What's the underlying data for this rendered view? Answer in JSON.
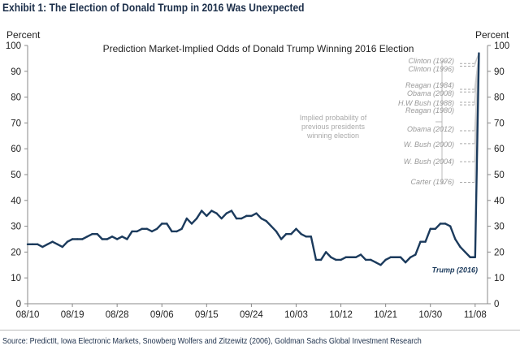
{
  "title": "Exhibit 1: The Election of Donald Trump in 2016 Was Unexpected",
  "source": "Source: PredictIt, Iowa Electronic Markets, Snowberg Wolfers and Zitzewitz (2006), Goldman Sachs Global Investment Research",
  "chart_data": {
    "type": "line",
    "title": "Prediction Market-Implied Odds of Donald Trump Winning 2016 Election",
    "ylabel_left": "Percent",
    "ylabel_right": "Percent",
    "ylim": [
      0,
      100
    ],
    "yticks": [
      0,
      10,
      20,
      30,
      40,
      50,
      60,
      70,
      80,
      90,
      100
    ],
    "xticks": [
      "08/10",
      "08/19",
      "08/28",
      "09/06",
      "09/15",
      "09/24",
      "10/03",
      "10/12",
      "10/21",
      "10/30",
      "11/08"
    ],
    "grid": false,
    "series": [
      {
        "name": "Trump (2016)",
        "color": "#1b3a5c",
        "x": [
          "08/10",
          "08/11",
          "08/12",
          "08/13",
          "08/14",
          "08/15",
          "08/16",
          "08/17",
          "08/18",
          "08/19",
          "08/20",
          "08/21",
          "08/22",
          "08/23",
          "08/24",
          "08/25",
          "08/26",
          "08/27",
          "08/28",
          "08/29",
          "08/30",
          "08/31",
          "09/01",
          "09/02",
          "09/03",
          "09/04",
          "09/05",
          "09/06",
          "09/07",
          "09/08",
          "09/09",
          "09/10",
          "09/11",
          "09/12",
          "09/13",
          "09/14",
          "09/15",
          "09/16",
          "09/17",
          "09/18",
          "09/19",
          "09/20",
          "09/21",
          "09/22",
          "09/23",
          "09/24",
          "09/25",
          "09/26",
          "09/27",
          "09/28",
          "09/29",
          "09/30",
          "10/01",
          "10/02",
          "10/03",
          "10/04",
          "10/05",
          "10/06",
          "10/07",
          "10/08",
          "10/09",
          "10/10",
          "10/11",
          "10/12",
          "10/13",
          "10/14",
          "10/15",
          "10/16",
          "10/17",
          "10/18",
          "10/19",
          "10/20",
          "10/21",
          "10/22",
          "10/23",
          "10/24",
          "10/25",
          "10/26",
          "10/27",
          "10/28",
          "10/29",
          "10/30",
          "10/31",
          "11/01",
          "11/02",
          "11/03",
          "11/04",
          "11/05",
          "11/06",
          "11/07",
          "11/08",
          "11/09"
        ],
        "y": [
          23,
          23,
          23,
          22,
          23,
          24,
          23,
          22,
          24,
          25,
          25,
          25,
          26,
          27,
          27,
          25,
          25,
          26,
          25,
          26,
          25,
          28,
          28,
          29,
          29,
          28,
          29,
          31,
          31,
          28,
          28,
          29,
          33,
          31,
          33,
          36,
          34,
          36,
          35,
          33,
          35,
          36,
          33,
          33,
          34,
          34,
          35,
          33,
          32,
          30,
          28,
          25,
          27,
          27,
          29,
          27,
          26,
          26,
          17,
          17,
          20,
          18,
          17,
          17,
          18,
          18,
          18,
          19,
          17,
          17,
          16,
          15,
          17,
          18,
          18,
          18,
          16,
          18,
          19,
          24,
          24,
          29,
          29,
          31,
          31,
          30,
          25,
          22,
          20,
          18,
          18,
          97
        ]
      }
    ],
    "annotation": "Implied probability of previous presidents winning election",
    "reference_levels": [
      {
        "label": "Clinton (1992)",
        "value": 93
      },
      {
        "label": "Clinton (1996)",
        "value": 92
      },
      {
        "label": "Reagan (1984)",
        "value": 83
      },
      {
        "label": "Obama (2008)",
        "value": 82
      },
      {
        "label": "H.W Bush (1988)",
        "value": 78
      },
      {
        "label": "Reagan (1980)",
        "value": 77
      },
      {
        "label": "Obama (2012)",
        "value": 67
      },
      {
        "label": "W. Bush (2000)",
        "value": 62
      },
      {
        "label": "W. Bush (2004)",
        "value": 55
      },
      {
        "label": "Carter (1976)",
        "value": 47
      }
    ]
  }
}
